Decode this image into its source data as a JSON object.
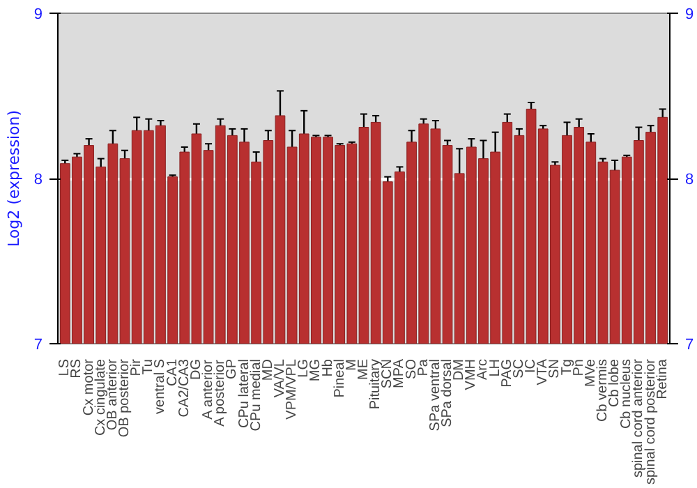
{
  "chart_data": {
    "type": "bar",
    "ylabel": "Log2 (expression)",
    "categories": [
      "LS",
      "RS",
      "Cx motor",
      "Cx cingulate",
      "OB anterior",
      "OB posterior",
      "Pir",
      "Tu",
      "ventral S",
      "CA1",
      "CA2/CA3",
      "DG",
      "A anterior",
      "A posterior",
      "GP",
      "CPu lateral",
      "CPu medial",
      "MD",
      "VA/VL",
      "VPM/VPL",
      "LG",
      "MG",
      "Hb",
      "Pineal",
      "M",
      "ME",
      "Pituitary",
      "SCN",
      "MPA",
      "SO",
      "Pa",
      "SPa ventral",
      "SPa dorsal",
      "DM",
      "VMH",
      "Arc",
      "LH",
      "PAG",
      "SC",
      "IC",
      "VTA",
      "SN",
      "Tg",
      "Pn",
      "MVe",
      "Cb vermis",
      "Cb lobe",
      "Cb nucleus",
      "spinal cord anterior",
      "spinal cord posterior",
      "Retina"
    ],
    "values": [
      8.09,
      8.13,
      8.2,
      8.07,
      8.21,
      8.12,
      8.29,
      8.29,
      8.32,
      8.01,
      8.16,
      8.27,
      8.17,
      8.32,
      8.26,
      8.22,
      8.1,
      8.23,
      8.38,
      8.19,
      8.27,
      8.25,
      8.25,
      8.2,
      8.21,
      8.31,
      8.34,
      7.98,
      8.04,
      8.22,
      8.33,
      8.3,
      8.2,
      8.03,
      8.19,
      8.12,
      8.16,
      8.34,
      8.26,
      8.42,
      8.3,
      8.08,
      8.26,
      8.31,
      8.22,
      8.1,
      8.05,
      8.13,
      8.23,
      8.28,
      8.37
    ],
    "errors": [
      0.02,
      0.02,
      0.04,
      0.05,
      0.08,
      0.05,
      0.08,
      0.07,
      0.03,
      0.01,
      0.03,
      0.06,
      0.04,
      0.04,
      0.04,
      0.08,
      0.06,
      0.06,
      0.15,
      0.1,
      0.14,
      0.01,
      0.01,
      0.01,
      0.01,
      0.08,
      0.04,
      0.03,
      0.03,
      0.07,
      0.03,
      0.05,
      0.03,
      0.15,
      0.05,
      0.11,
      0.12,
      0.05,
      0.04,
      0.04,
      0.02,
      0.02,
      0.08,
      0.05,
      0.05,
      0.02,
      0.06,
      0.01,
      0.08,
      0.04,
      0.05
    ],
    "color": "#b83030",
    "ylim": [
      7,
      9
    ],
    "yticks": [
      7,
      8,
      9
    ],
    "y2lim": [
      7,
      9
    ],
    "y2ticks": [
      7,
      8,
      9
    ],
    "grid": "y"
  }
}
